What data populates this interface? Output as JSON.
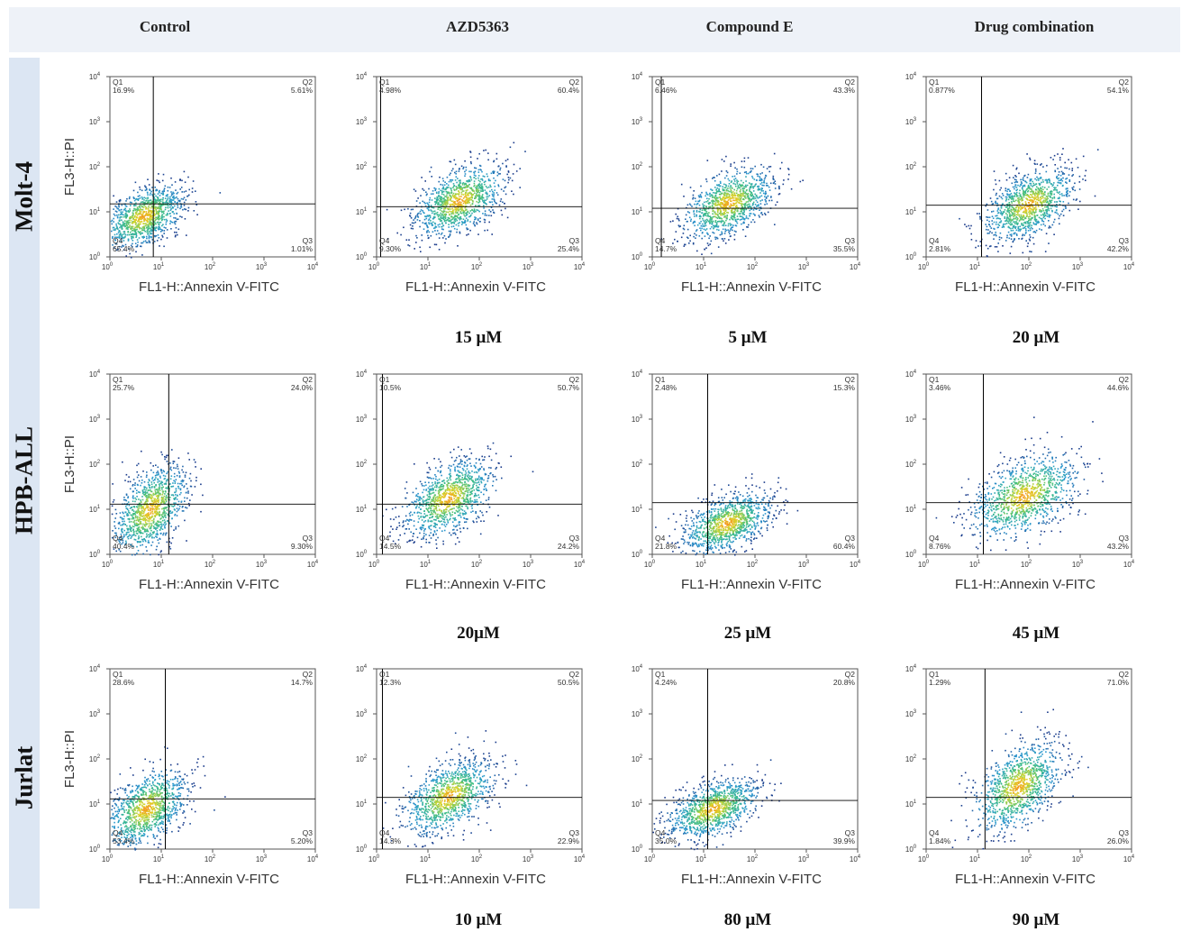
{
  "columns": [
    "Control",
    "AZD5363",
    "Compound E",
    "Drug combination"
  ],
  "rows": [
    "Molt-4",
    "HPB-ALL",
    "Jurlat"
  ],
  "doses": [
    [
      "",
      "15 μM",
      "5 μM",
      "20 μM"
    ],
    [
      "",
      "20μM",
      "25 μM",
      "45 μM"
    ],
    [
      "",
      "10 μM",
      "80 μM",
      "90 μM"
    ]
  ],
  "axes": {
    "x_label": "FL1-H::Annexin V-FITC",
    "y_label": "FL3-H::PI",
    "scale": "log",
    "range": [
      1,
      10000
    ],
    "ticks": [
      {
        "value": 1,
        "base": "10",
        "exp": "0"
      },
      {
        "value": 10,
        "base": "10",
        "exp": "1"
      },
      {
        "value": 100,
        "base": "10",
        "exp": "2"
      },
      {
        "value": 1000,
        "base": "10",
        "exp": "3"
      },
      {
        "value": 10000,
        "base": "10",
        "exp": "4"
      }
    ]
  },
  "colors": {
    "density_low": "#1a3a8a",
    "density_mid": "#2a9ad0",
    "density_high": "#f0d020",
    "gate_line": "#000000"
  },
  "chart_data": [
    {
      "type": "scatter",
      "row": "Molt-4",
      "column": "Control",
      "gate": {
        "x": 7,
        "y": 15
      },
      "center": {
        "x": 4.5,
        "y": 8
      },
      "spread": [
        0.38,
        0.34
      ],
      "quadrants": {
        "Q1": "16.9%",
        "Q2": "5.61%",
        "Q3": "1.01%",
        "Q4": "65.4%"
      }
    },
    {
      "type": "scatter",
      "row": "Molt-4",
      "column": "AZD5363",
      "gate": {
        "x": 1.2,
        "y": 13
      },
      "center": {
        "x": 40,
        "y": 18
      },
      "spread": [
        0.42,
        0.38
      ],
      "quadrants": {
        "Q1": "4.98%",
        "Q2": "60.4%",
        "Q3": "25.4%",
        "Q4": "9.30%"
      }
    },
    {
      "type": "scatter",
      "row": "Molt-4",
      "column": "Compound E",
      "gate": {
        "x": 1.5,
        "y": 12
      },
      "center": {
        "x": 30,
        "y": 16
      },
      "spread": [
        0.42,
        0.38
      ],
      "quadrants": {
        "Q1": "6.46%",
        "Q2": "43.3%",
        "Q3": "35.5%",
        "Q4": "14.7%"
      }
    },
    {
      "type": "scatter",
      "row": "Molt-4",
      "column": "Drug combination",
      "gate": {
        "x": 12,
        "y": 14
      },
      "center": {
        "x": 100,
        "y": 15
      },
      "spread": [
        0.42,
        0.38
      ],
      "quadrants": {
        "Q1": "0.877%",
        "Q2": "54.1%",
        "Q3": "42.2%",
        "Q4": "2.81%"
      }
    },
    {
      "type": "scatter",
      "row": "HPB-ALL",
      "column": "Control",
      "gate": {
        "x": 14,
        "y": 13
      },
      "center": {
        "x": 6,
        "y": 10
      },
      "spread": [
        0.35,
        0.48
      ],
      "quadrants": {
        "Q1": "25.7%",
        "Q2": "24.0%",
        "Q3": "9.30%",
        "Q4": "40.4%"
      }
    },
    {
      "type": "scatter",
      "row": "HPB-ALL",
      "column": "AZD5363",
      "gate": {
        "x": 1.3,
        "y": 13
      },
      "center": {
        "x": 25,
        "y": 18
      },
      "spread": [
        0.42,
        0.42
      ],
      "quadrants": {
        "Q1": "10.5%",
        "Q2": "50.7%",
        "Q3": "24.2%",
        "Q4": "14.5%"
      }
    },
    {
      "type": "scatter",
      "row": "HPB-ALL",
      "column": "Compound E",
      "gate": {
        "x": 12,
        "y": 14
      },
      "center": {
        "x": 28,
        "y": 5
      },
      "spread": [
        0.42,
        0.32
      ],
      "quadrants": {
        "Q1": "2.48%",
        "Q2": "15.3%",
        "Q3": "60.4%",
        "Q4": "21.8%"
      }
    },
    {
      "type": "scatter",
      "row": "HPB-ALL",
      "column": "Drug combination",
      "gate": {
        "x": 13,
        "y": 14
      },
      "center": {
        "x": 80,
        "y": 20
      },
      "spread": [
        0.5,
        0.45
      ],
      "quadrants": {
        "Q1": "3.46%",
        "Q2": "44.6%",
        "Q3": "43.2%",
        "Q4": "8.76%"
      }
    },
    {
      "type": "scatter",
      "row": "Jurlat",
      "column": "Control",
      "gate": {
        "x": 12,
        "y": 13
      },
      "center": {
        "x": 5,
        "y": 8
      },
      "spread": [
        0.38,
        0.42
      ],
      "quadrants": {
        "Q1": "28.6%",
        "Q2": "14.7%",
        "Q3": "5.20%",
        "Q4": "53.4%"
      }
    },
    {
      "type": "scatter",
      "row": "Jurlat",
      "column": "AZD5363",
      "gate": {
        "x": 1.3,
        "y": 14
      },
      "center": {
        "x": 25,
        "y": 15
      },
      "spread": [
        0.42,
        0.4
      ],
      "quadrants": {
        "Q1": "12.3%",
        "Q2": "50.5%",
        "Q3": "22.9%",
        "Q4": "14.3%"
      }
    },
    {
      "type": "scatter",
      "row": "Jurlat",
      "column": "Compound E",
      "gate": {
        "x": 12,
        "y": 12
      },
      "center": {
        "x": 15,
        "y": 8
      },
      "spread": [
        0.42,
        0.32
      ],
      "quadrants": {
        "Q1": "4.24%",
        "Q2": "20.8%",
        "Q3": "39.9%",
        "Q4": "35.0%"
      }
    },
    {
      "type": "scatter",
      "row": "Jurlat",
      "column": "Drug combination",
      "gate": {
        "x": 14,
        "y": 14
      },
      "center": {
        "x": 60,
        "y": 25
      },
      "spread": [
        0.4,
        0.48
      ],
      "quadrants": {
        "Q1": "1.29%",
        "Q2": "71.0%",
        "Q3": "26.0%",
        "Q4": "1.84%"
      }
    }
  ]
}
